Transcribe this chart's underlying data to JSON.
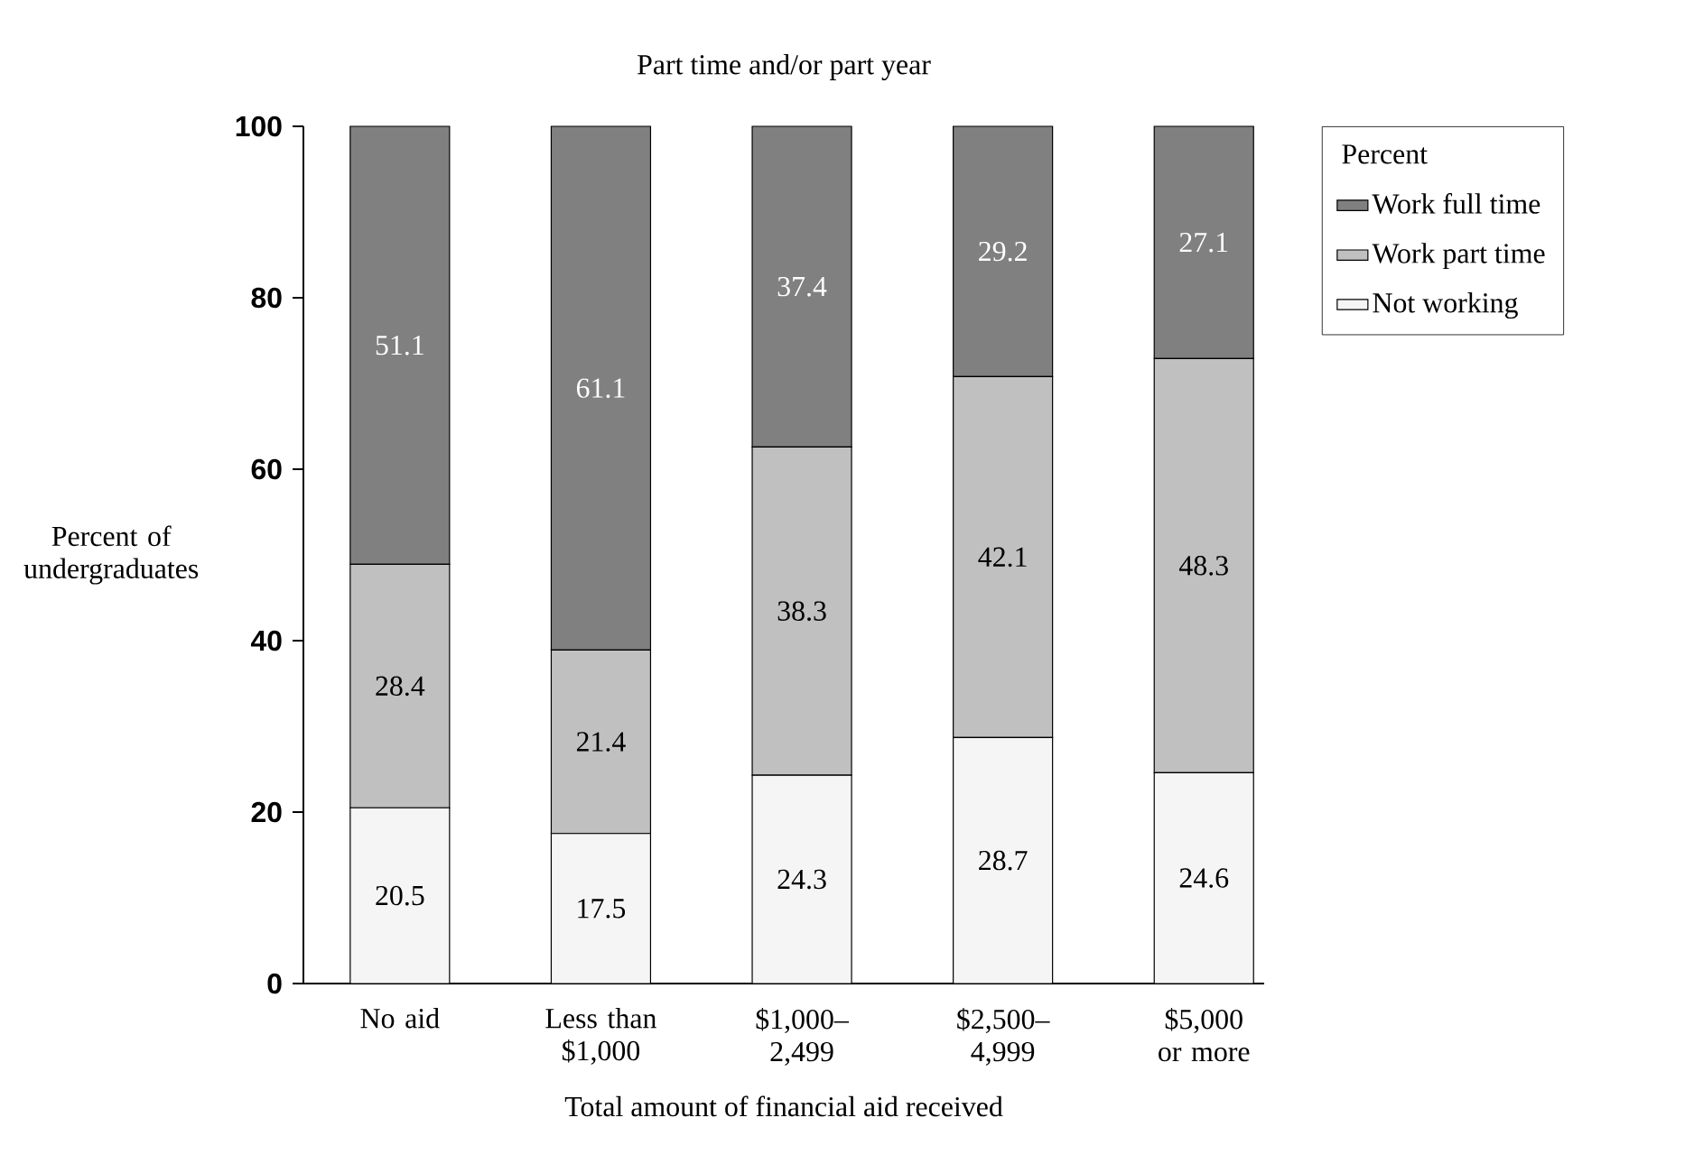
{
  "chart_data": {
    "type": "bar",
    "stacked": true,
    "title": "Part time and/or part year",
    "xlabel": "Total amount of financial aid received",
    "ylabel": "Percent of undergraduates",
    "legend_title": "Percent",
    "categories": [
      "No aid",
      "Less than $1,000",
      "$1,000–2,499",
      "$2,500–4,999",
      "$5,000 or more"
    ],
    "series": [
      {
        "name": "Not working",
        "color": "#f5f5f5",
        "values": [
          20.5,
          17.5,
          24.3,
          28.7,
          24.6
        ]
      },
      {
        "name": "Work part time",
        "color": "#c0c0c0",
        "values": [
          28.4,
          21.4,
          38.3,
          42.1,
          48.3
        ]
      },
      {
        "name": "Work full time",
        "color": "#808080",
        "values": [
          51.1,
          61.1,
          37.4,
          29.2,
          27.1
        ]
      }
    ],
    "ylim": [
      0,
      100
    ],
    "yticks": [
      0,
      20,
      40,
      60,
      80,
      100
    ],
    "data_labels": true,
    "legend": "top right",
    "grid": false
  }
}
